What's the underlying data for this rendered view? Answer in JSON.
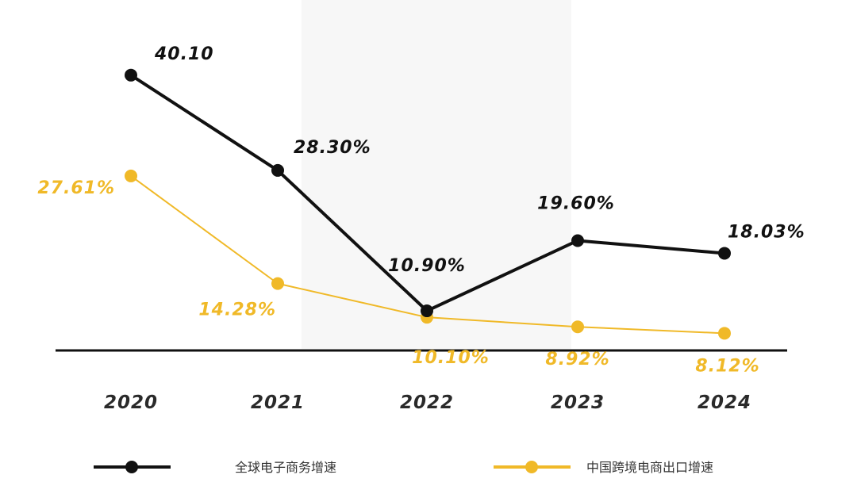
{
  "chart_data": {
    "type": "line",
    "categories": [
      "2020",
      "2021",
      "2022",
      "2023",
      "2024"
    ],
    "series": [
      {
        "name": "全球电子商务增速",
        "color": "#111111",
        "values": [
          40.1,
          28.3,
          10.9,
          19.6,
          18.03
        ],
        "labels": [
          "40.10",
          "28.30%",
          "10.90%",
          "19.60%",
          "18.03%"
        ]
      },
      {
        "name": "中国跨境电商出口增速",
        "color": "#f0b928",
        "values": [
          27.61,
          14.28,
          10.1,
          8.92,
          8.12
        ],
        "labels": [
          "27.61%",
          "14.28%",
          "10.10%",
          "8.92%",
          "8.12%"
        ]
      }
    ],
    "legend_position": "bottom",
    "grid": false
  }
}
